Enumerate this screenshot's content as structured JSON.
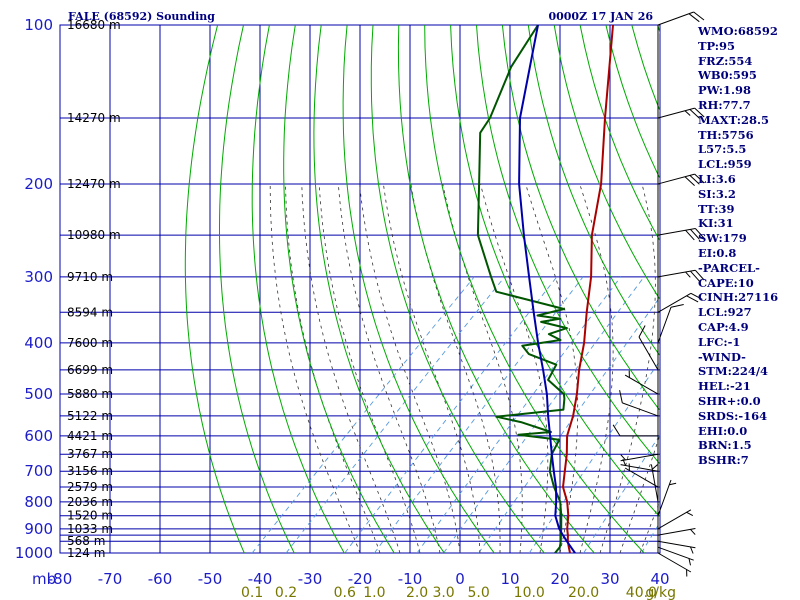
{
  "header": {
    "station_title": "FALE (68592) Sounding",
    "valid_time": "0000Z 17 JAN 26"
  },
  "colors": {
    "frame": "#0000aa",
    "grid": "#0000aa",
    "dry_adiabat": "#00aa00",
    "moist_adiabat": "#333333",
    "mixing_ratio": "#5599dd",
    "temperature": "#aa0000",
    "dewpoint": "#005500",
    "parcel": "#0000aa",
    "wind_barb": "#000000",
    "index_text": "#00007a",
    "mixing_ratio_label": "#777700"
  },
  "indices": [
    "WMO:68592",
    "TP:95",
    "FRZ:554",
    "WB0:595",
    "PW:1.98",
    "RH:77.7",
    "MAXT:28.5",
    "TH:5756",
    "L57:5.5",
    "LCL:959",
    "LI:3.6",
    "SI:3.2",
    "TT:39",
    "KI:31",
    "SW:179",
    "EI:0.8",
    "-PARCEL-",
    "CAPE:10",
    "CINH:27116",
    "LCL:927",
    "CAP:4.9",
    "LFC:-1",
    "-WIND-",
    "STM:224/4",
    "HEL:-21",
    "SHR+:0.0",
    "SRDS:-164",
    "EHI:0.0",
    "BRN:1.5",
    "BSHR:7"
  ],
  "chart_data": {
    "type": "line",
    "subtype": "skew-T log-P sounding",
    "y_axis": {
      "unit_label": "mb",
      "scale": "log",
      "range": [
        1000,
        100
      ],
      "ticks": [
        100,
        200,
        300,
        400,
        500,
        600,
        700,
        800,
        900,
        1000
      ]
    },
    "x_axis": {
      "range": [
        -80,
        40
      ],
      "tick_labels": [
        "-80",
        "-70",
        "-60",
        "-50",
        "-40",
        "-30",
        "-20",
        "-10",
        "0",
        "10",
        "20",
        "30",
        "40"
      ]
    },
    "grid_pressures": [
      100,
      150,
      200,
      250,
      300,
      350,
      400,
      450,
      500,
      550,
      600,
      650,
      700,
      750,
      800,
      850,
      900,
      925,
      950,
      1000
    ],
    "height_labels": [
      {
        "p": 100,
        "label": "16680 m"
      },
      {
        "p": 150,
        "label": "14270 m"
      },
      {
        "p": 200,
        "label": "12470 m"
      },
      {
        "p": 250,
        "label": "10980 m"
      },
      {
        "p": 300,
        "label": "9710 m"
      },
      {
        "p": 350,
        "label": "8594 m"
      },
      {
        "p": 400,
        "label": "7600 m"
      },
      {
        "p": 450,
        "label": "6699 m"
      },
      {
        "p": 500,
        "label": "5880 m"
      },
      {
        "p": 550,
        "label": "5122 m"
      },
      {
        "p": 600,
        "label": "4421 m"
      },
      {
        "p": 650,
        "label": "3767 m"
      },
      {
        "p": 700,
        "label": "3156 m"
      },
      {
        "p": 750,
        "label": "2579 m"
      },
      {
        "p": 800,
        "label": "2036 m"
      },
      {
        "p": 850,
        "label": "1520 m"
      },
      {
        "p": 900,
        "label": "1033 m"
      },
      {
        "p": 950,
        "label": "568 m"
      },
      {
        "p": 1000,
        "label": "124 m"
      }
    ],
    "mixing_ratio_lines": [
      0.1,
      0.2,
      0.6,
      1.0,
      2.0,
      3.0,
      5.0,
      10.0,
      20.0,
      40.0
    ],
    "mixing_ratio_labels": [
      "0.1",
      "0.2",
      "0.6",
      "1.0",
      "2.0",
      "3.0",
      "5.0",
      "10.0",
      "20.0",
      "40.0"
    ],
    "mixing_ratio_unit": "g/kg",
    "series": [
      {
        "id": "temperature",
        "points": [
          [
            1000,
            22
          ],
          [
            975,
            20.6
          ],
          [
            950,
            19.2
          ],
          [
            925,
            18
          ],
          [
            900,
            16.6
          ],
          [
            850,
            14.2
          ],
          [
            800,
            11.2
          ],
          [
            750,
            7.4
          ],
          [
            700,
            4.6
          ],
          [
            650,
            1.6
          ],
          [
            600,
            -2
          ],
          [
            550,
            -4.8
          ],
          [
            500,
            -8.4
          ],
          [
            450,
            -12.8
          ],
          [
            400,
            -17.2
          ],
          [
            350,
            -22.8
          ],
          [
            300,
            -29
          ],
          [
            250,
            -37.2
          ],
          [
            200,
            -45.6
          ],
          [
            150,
            -58
          ],
          [
            100,
            -75
          ]
        ]
      },
      {
        "id": "dewpoint",
        "points": [
          [
            1000,
            19
          ],
          [
            975,
            18.8
          ],
          [
            950,
            17.8
          ],
          [
            925,
            16.6
          ],
          [
            900,
            15.4
          ],
          [
            850,
            12.8
          ],
          [
            800,
            9.8
          ],
          [
            750,
            5.6
          ],
          [
            700,
            1.6
          ],
          [
            650,
            -1.4
          ],
          [
            610,
            -2.8
          ],
          [
            597,
            -12
          ],
          [
            590,
            -6
          ],
          [
            565,
            -14
          ],
          [
            552,
            -20
          ],
          [
            535,
            -8
          ],
          [
            510,
            -10
          ],
          [
            500,
            -11
          ],
          [
            470,
            -17
          ],
          [
            440,
            -18.4
          ],
          [
            420,
            -26
          ],
          [
            405,
            -29
          ],
          [
            395,
            -22.5
          ],
          [
            385,
            -26
          ],
          [
            375,
            -23.6
          ],
          [
            365,
            -30
          ],
          [
            360,
            -26.8
          ],
          [
            355,
            -32
          ],
          [
            345,
            -28
          ],
          [
            320,
            -45
          ],
          [
            300,
            -49
          ],
          [
            250,
            -60
          ],
          [
            200,
            -70
          ],
          [
            160,
            -80
          ],
          [
            150,
            -81
          ],
          [
            120,
            -87
          ],
          [
            100,
            -90
          ]
        ]
      },
      {
        "id": "parcel",
        "points": [
          [
            1000,
            23
          ],
          [
            950,
            19
          ],
          [
            925,
            17
          ],
          [
            900,
            15
          ],
          [
            850,
            11.6
          ],
          [
            800,
            9
          ],
          [
            750,
            6
          ],
          [
            700,
            2.4
          ],
          [
            650,
            -1.4
          ],
          [
            600,
            -5.4
          ],
          [
            550,
            -9.8
          ],
          [
            500,
            -14.4
          ],
          [
            450,
            -20
          ],
          [
            400,
            -26.4
          ],
          [
            350,
            -33.4
          ],
          [
            300,
            -41.4
          ],
          [
            250,
            -50.8
          ],
          [
            200,
            -62
          ],
          [
            150,
            -75
          ],
          [
            100,
            -90
          ]
        ]
      }
    ],
    "wind": [
      {
        "p": 1000,
        "dir": 120,
        "spd": 5
      },
      {
        "p": 975,
        "dir": 110,
        "spd": 5
      },
      {
        "p": 950,
        "dir": 100,
        "spd": 5
      },
      {
        "p": 925,
        "dir": 80,
        "spd": 5
      },
      {
        "p": 900,
        "dir": 60,
        "spd": 5
      },
      {
        "p": 850,
        "dir": 20,
        "spd": 5
      },
      {
        "p": 800,
        "dir": 350,
        "spd": 5
      },
      {
        "p": 750,
        "dir": 300,
        "spd": 5
      },
      {
        "p": 700,
        "dir": 280,
        "spd": 5
      },
      {
        "p": 650,
        "dir": 260,
        "spd": 5
      },
      {
        "p": 600,
        "dir": 270,
        "spd": 10
      },
      {
        "p": 550,
        "dir": 290,
        "spd": 10
      },
      {
        "p": 500,
        "dir": 300,
        "spd": 5
      },
      {
        "p": 450,
        "dir": 330,
        "spd": 10
      },
      {
        "p": 400,
        "dir": 20,
        "spd": 10
      },
      {
        "p": 350,
        "dir": 60,
        "spd": 20
      },
      {
        "p": 300,
        "dir": 80,
        "spd": 25
      },
      {
        "p": 250,
        "dir": 80,
        "spd": 30
      },
      {
        "p": 200,
        "dir": 75,
        "spd": 30
      },
      {
        "p": 150,
        "dir": 75,
        "spd": 25
      },
      {
        "p": 100,
        "dir": 70,
        "spd": 20
      }
    ]
  }
}
